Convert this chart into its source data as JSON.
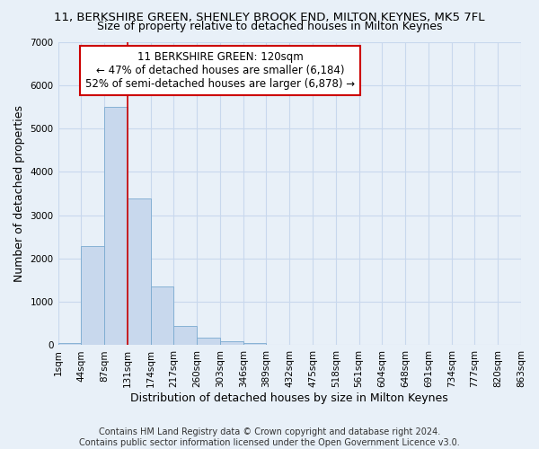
{
  "title": "11, BERKSHIRE GREEN, SHENLEY BROOK END, MILTON KEYNES, MK5 7FL",
  "subtitle": "Size of property relative to detached houses in Milton Keynes",
  "xlabel": "Distribution of detached houses by size in Milton Keynes",
  "ylabel": "Number of detached properties",
  "footnote1": "Contains HM Land Registry data © Crown copyright and database right 2024.",
  "footnote2": "Contains public sector information licensed under the Open Government Licence v3.0.",
  "annotation_line1": "11 BERKSHIRE GREEN: 120sqm",
  "annotation_line2": "← 47% of detached houses are smaller (6,184)",
  "annotation_line3": "52% of semi-detached houses are larger (6,878) →",
  "bar_values": [
    60,
    2280,
    5500,
    3380,
    1350,
    450,
    175,
    100,
    50,
    0,
    0,
    0,
    0,
    0,
    0,
    0,
    0,
    0,
    0,
    0
  ],
  "bin_labels": [
    "1sqm",
    "44sqm",
    "87sqm",
    "131sqm",
    "174sqm",
    "217sqm",
    "260sqm",
    "303sqm",
    "346sqm",
    "389sqm",
    "432sqm",
    "475sqm",
    "518sqm",
    "561sqm",
    "604sqm",
    "648sqm",
    "691sqm",
    "734sqm",
    "777sqm",
    "820sqm",
    "863sqm"
  ],
  "bar_color": "#c8d8ed",
  "bar_edge_color": "#7aaad0",
  "grid_color": "#c8d8ed",
  "vline_color": "#cc0000",
  "annotation_box_color": "#cc0000",
  "ylim": [
    0,
    7000
  ],
  "yticks": [
    0,
    1000,
    2000,
    3000,
    4000,
    5000,
    6000,
    7000
  ],
  "bg_color": "#e8f0f8",
  "plot_bg_color": "#e8f0f8",
  "title_fontsize": 9.5,
  "subtitle_fontsize": 9,
  "label_fontsize": 9,
  "tick_fontsize": 7.5,
  "footnote_fontsize": 7,
  "annotation_fontsize": 8.5
}
